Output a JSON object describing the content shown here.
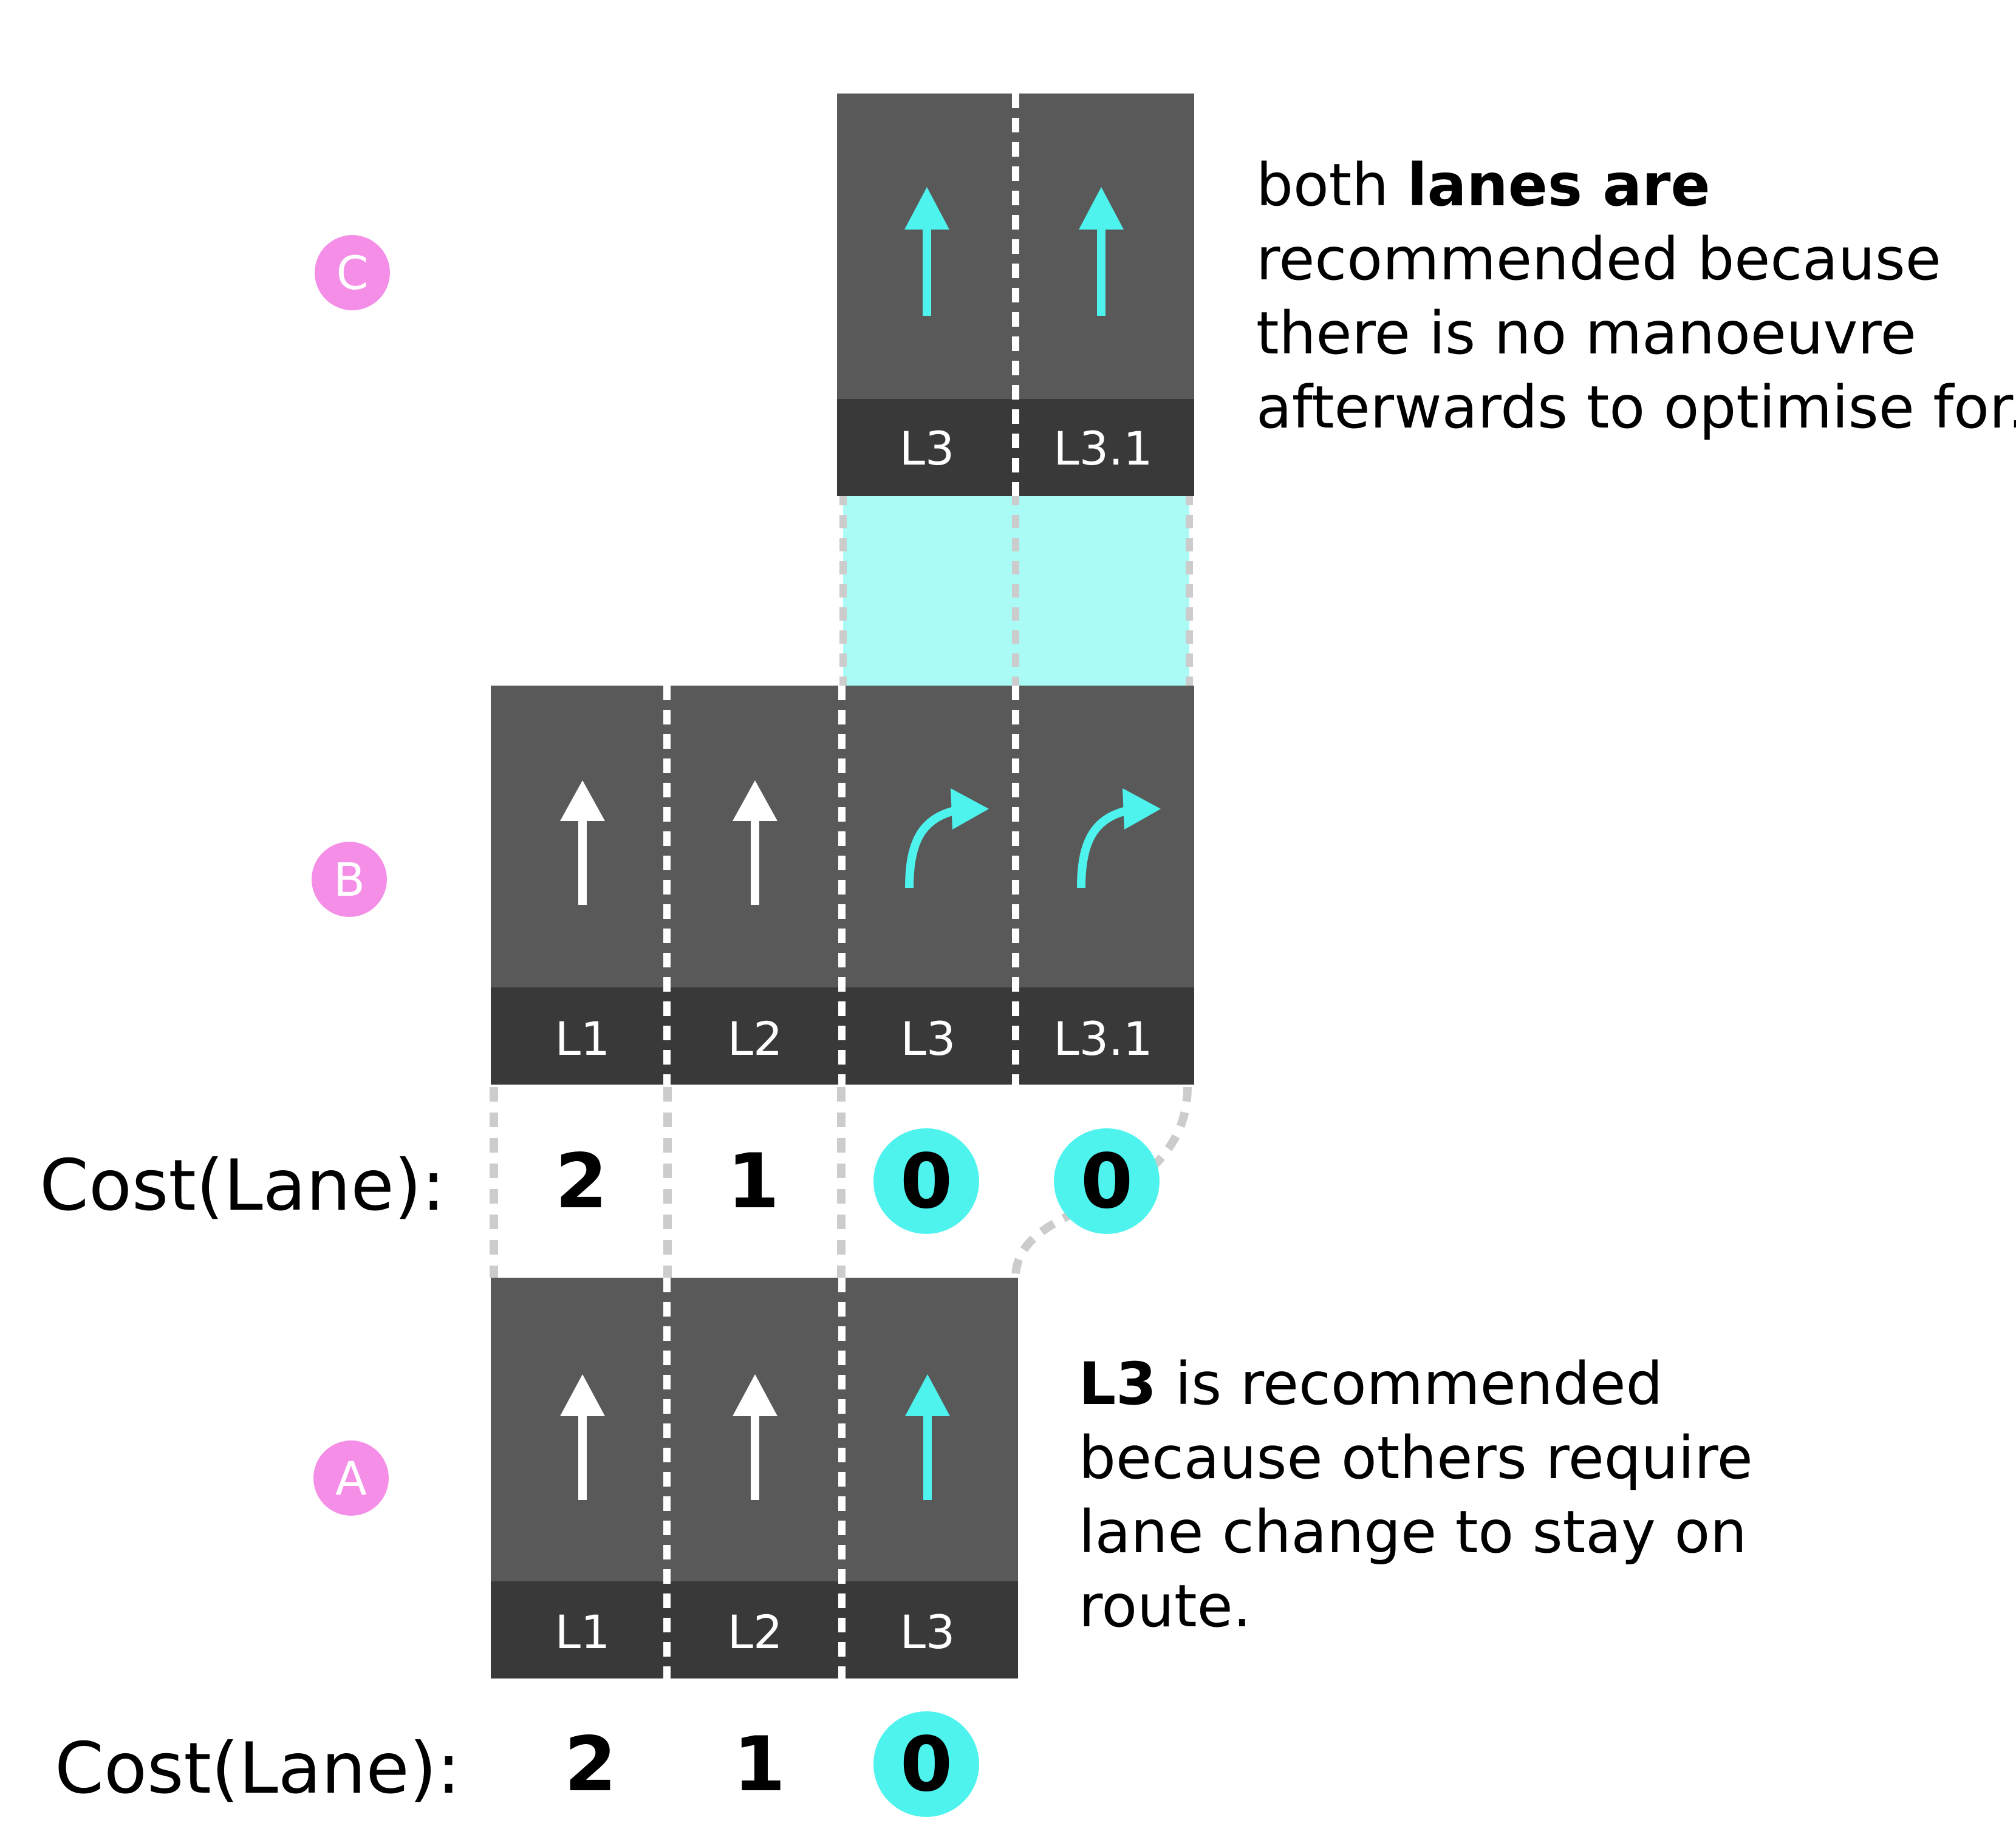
{
  "colors": {
    "lane": "#595959",
    "lane_label_bar": "#393939",
    "highlight_arrow": "#4ff3ee",
    "highlight_area": "#aafaf5",
    "badge": "#f48ee6",
    "connector": "#cccccc"
  },
  "sections": {
    "c": {
      "badge": "C",
      "lanes": [
        {
          "label": "L3",
          "arrow": "straight-arrow-icon",
          "highlighted": true
        },
        {
          "label": "L3.1",
          "arrow": "straight-arrow-icon",
          "highlighted": true
        }
      ],
      "note": {
        "line1_normal": "both ",
        "line1_bold": "lanes are",
        "line2": "recommended because",
        "line3": "there is no manoeuvre",
        "line4": "afterwards to optimise for."
      }
    },
    "b": {
      "badge": "B",
      "lanes": [
        {
          "label": "L1",
          "arrow": "straight-arrow-icon",
          "highlighted": false
        },
        {
          "label": "L2",
          "arrow": "straight-arrow-icon",
          "highlighted": false
        },
        {
          "label": "L3",
          "arrow": "curved-right-arrow-icon",
          "highlighted": true
        },
        {
          "label": "L3.1",
          "arrow": "curved-right-arrow-icon",
          "highlighted": true
        }
      ],
      "cost_label": "Cost(Lane):",
      "costs": [
        {
          "value": "2",
          "highlighted": false
        },
        {
          "value": "1",
          "highlighted": false
        },
        {
          "value": "0",
          "highlighted": true
        },
        {
          "value": "0",
          "highlighted": true
        }
      ]
    },
    "a": {
      "badge": "A",
      "lanes": [
        {
          "label": "L1",
          "arrow": "straight-arrow-icon",
          "highlighted": false
        },
        {
          "label": "L2",
          "arrow": "straight-arrow-icon",
          "highlighted": false
        },
        {
          "label": "L3",
          "arrow": "straight-arrow-icon",
          "highlighted": true
        }
      ],
      "cost_label": "Cost(Lane):",
      "costs": [
        {
          "value": "2",
          "highlighted": false
        },
        {
          "value": "1",
          "highlighted": false
        },
        {
          "value": "0",
          "highlighted": true
        }
      ],
      "note": {
        "line1_bold": "L3",
        "line1_normal": " is recommended",
        "line2": "because others require",
        "line3": "lane change to stay on",
        "line4": "route."
      }
    }
  }
}
